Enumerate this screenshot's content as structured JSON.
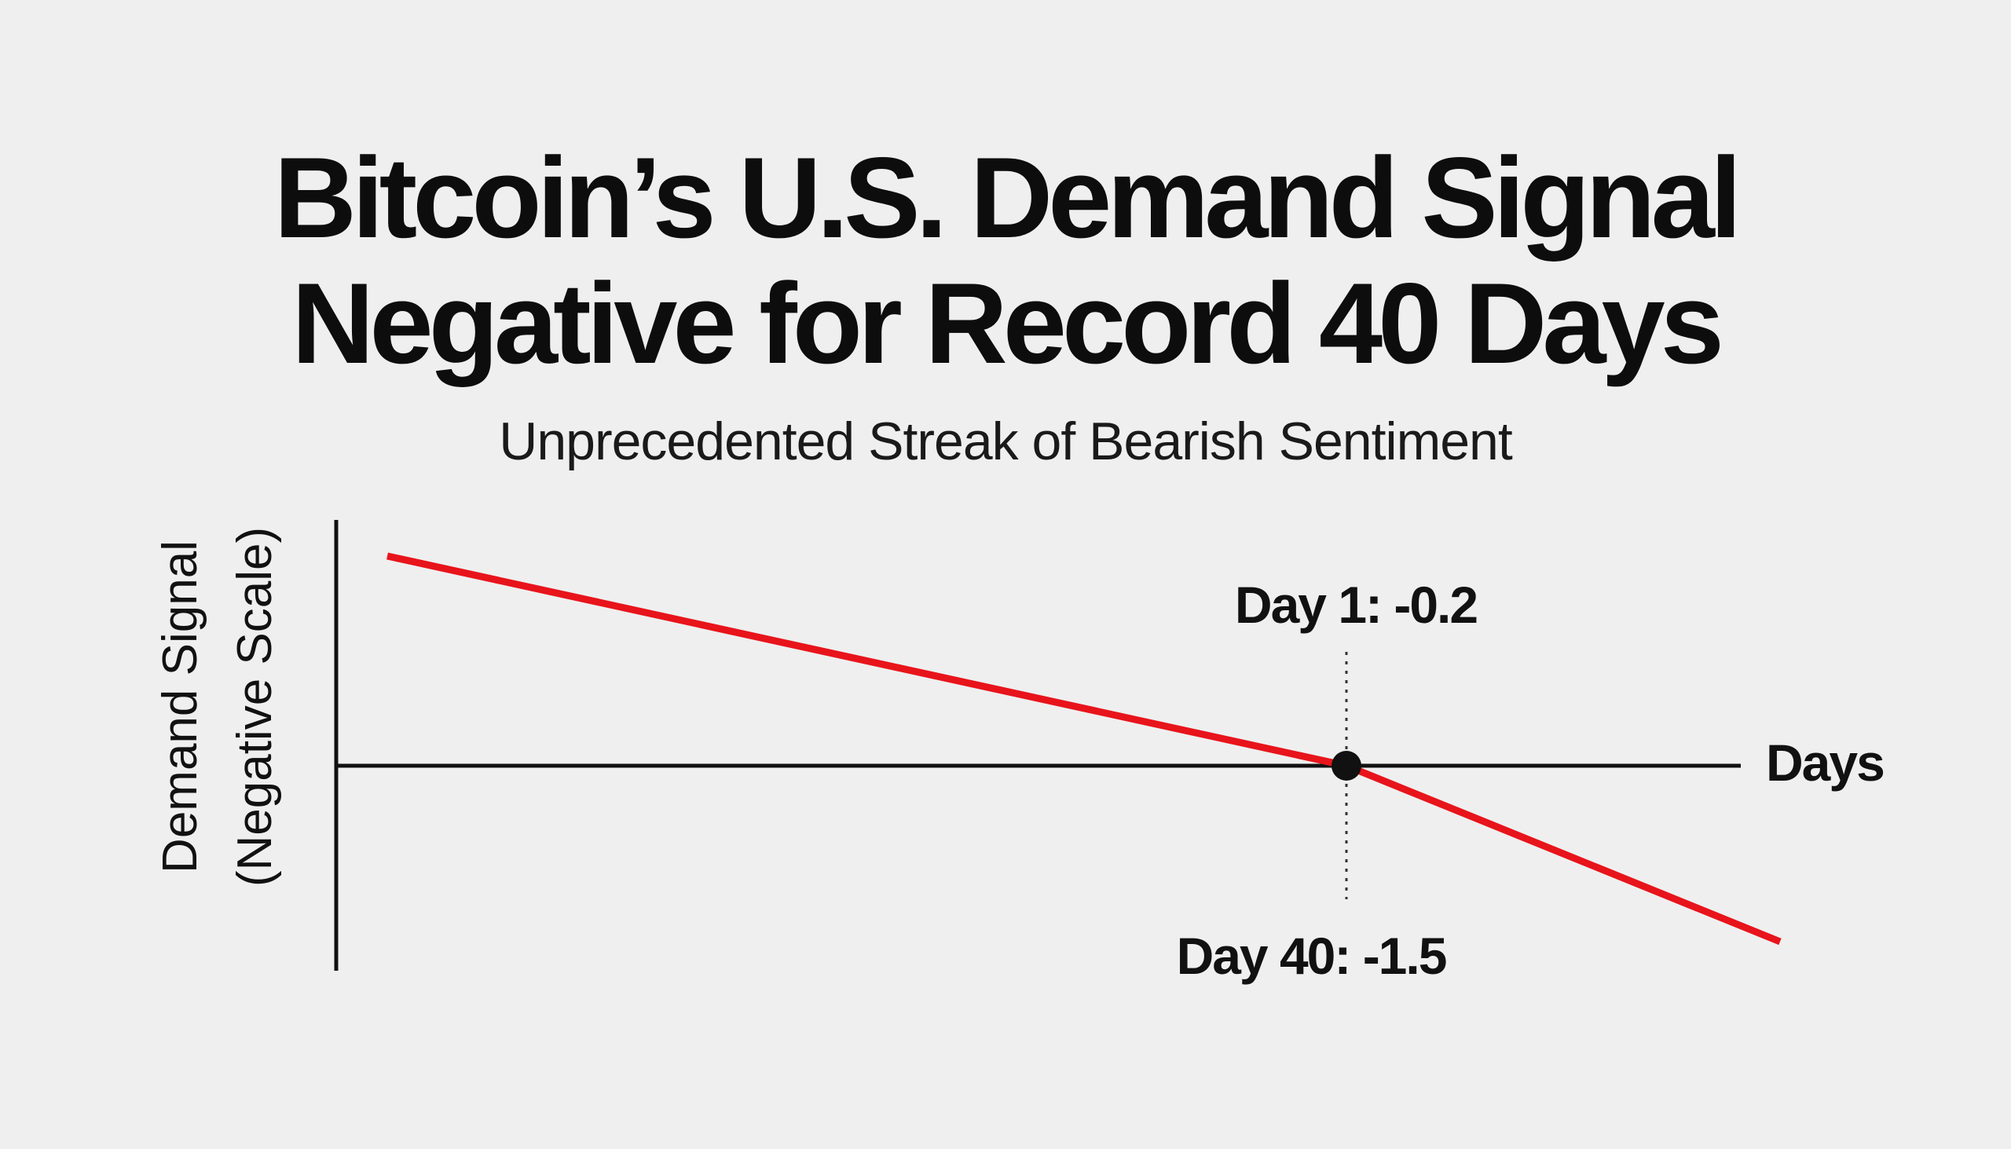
{
  "title_lines": [
    "Bitcoin’s U.S. Demand Signal",
    "Negative for Record 40 Days"
  ],
  "subtitle": "Unprecedented Streak of Bearish Sentiment",
  "chart_data": {
    "type": "line",
    "title": "Bitcoin’s U.S. Demand Signal Negative for Record 40 Days",
    "subtitle": "Unprecedented Streak of Bearish Sentiment",
    "xlabel": "Days",
    "ylabel_lines": [
      "Demand Signal",
      "(Negative Scale)"
    ],
    "series": [
      {
        "color": "#e8141b",
        "points": [
          {
            "x": 1,
            "y": -0.2
          },
          {
            "x": 40,
            "y": -1.5
          }
        ]
      }
    ],
    "annotations": [
      {
        "text": "Day 1: -0.2",
        "x": 1,
        "y": -0.2
      },
      {
        "text": "Day 40: -1.5",
        "x": 40,
        "y": -1.5
      }
    ],
    "marker": {
      "color": "#111111"
    },
    "axis_color": "#111111",
    "grid": false,
    "legend": "none"
  }
}
